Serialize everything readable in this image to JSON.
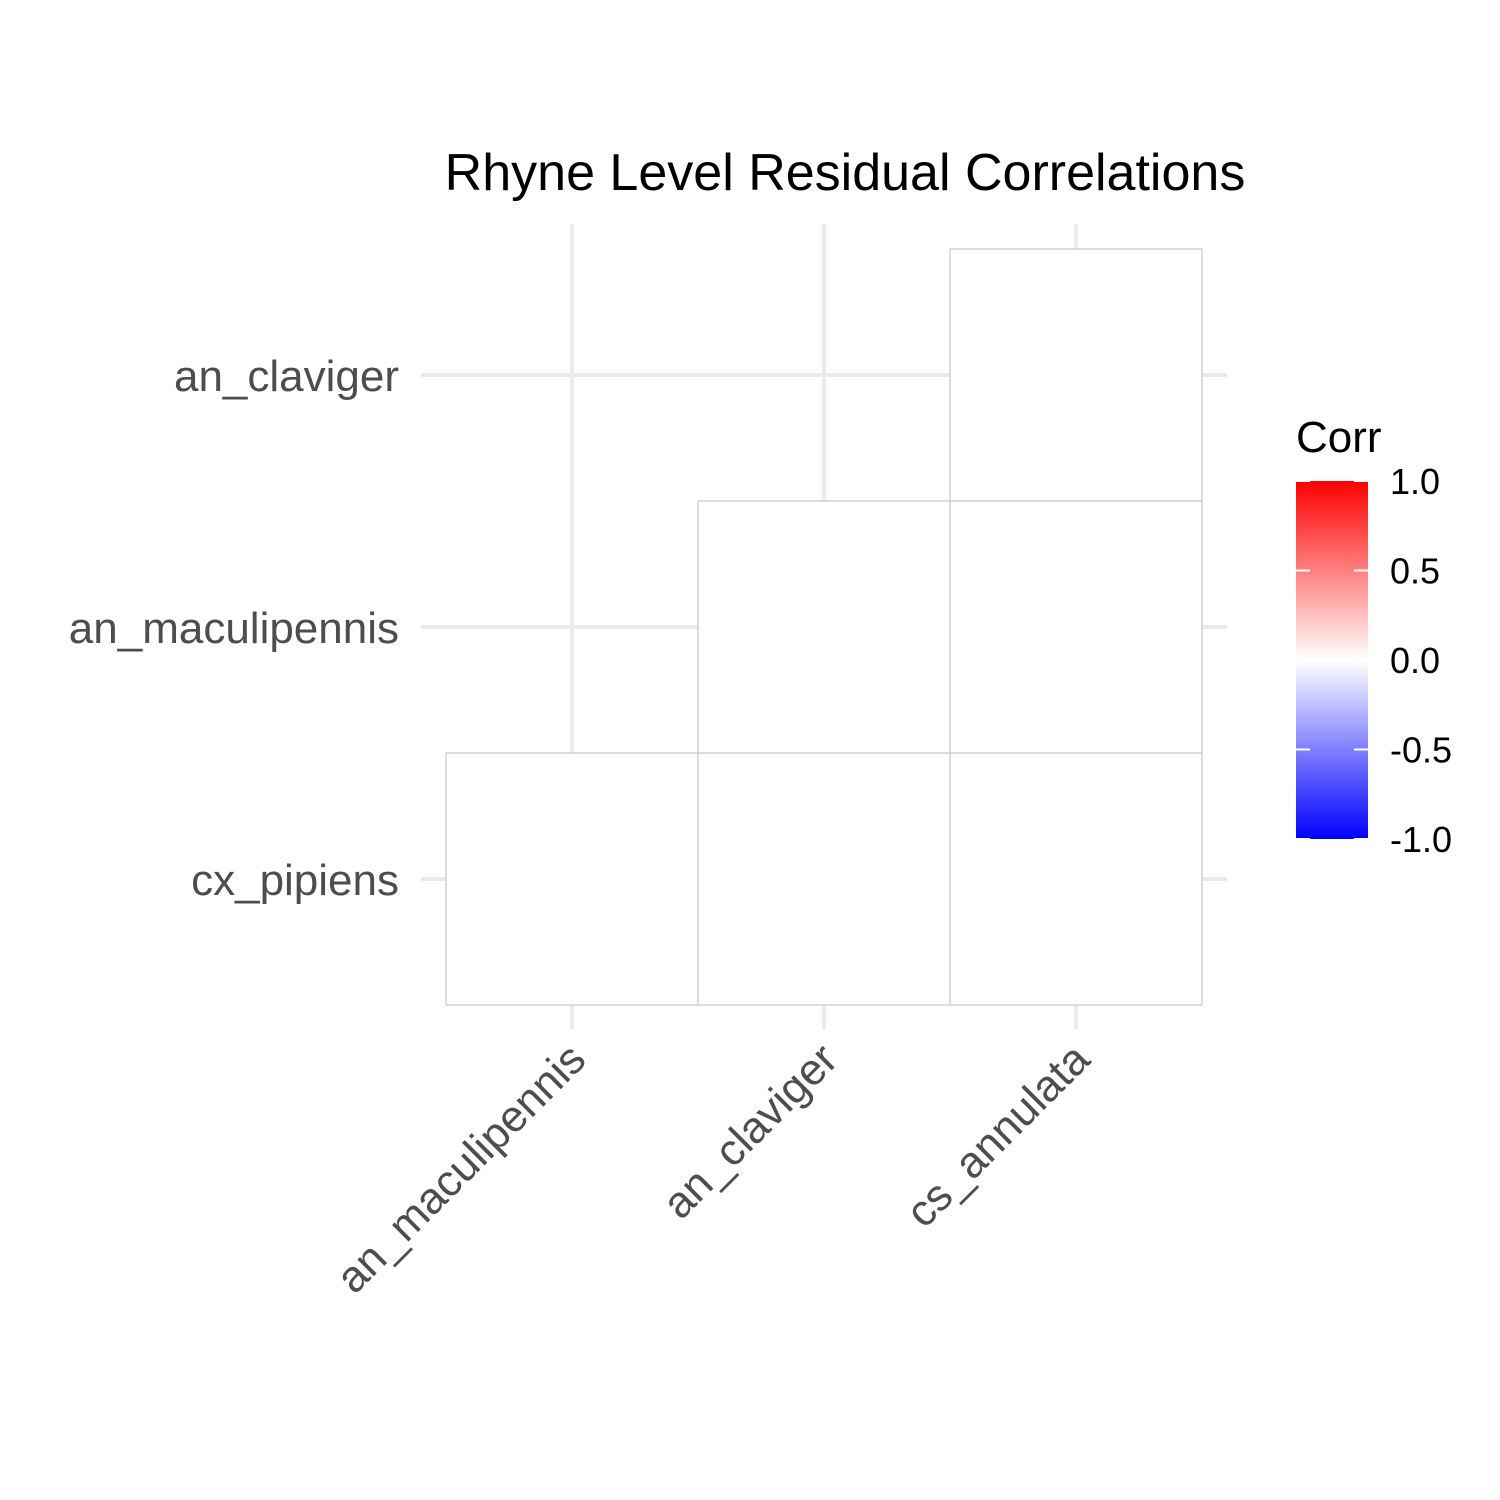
{
  "chart_data": {
    "type": "heatmap",
    "title": "Rhyne Level Residual Correlations",
    "x_categories": [
      "an_maculipennis",
      "an_claviger",
      "cs_annulata"
    ],
    "y_categories": [
      "cx_pipiens",
      "an_maculipennis",
      "an_claviger"
    ],
    "cells": [
      {
        "x": "an_maculipennis",
        "y": "cx_pipiens",
        "value": 0.0
      },
      {
        "x": "an_claviger",
        "y": "cx_pipiens",
        "value": 0.0
      },
      {
        "x": "cs_annulata",
        "y": "cx_pipiens",
        "value": 0.0
      },
      {
        "x": "an_claviger",
        "y": "an_maculipennis",
        "value": 0.0
      },
      {
        "x": "cs_annulata",
        "y": "an_maculipennis",
        "value": 0.0
      },
      {
        "x": "cs_annulata",
        "y": "an_claviger",
        "value": 0.0
      }
    ],
    "legend": {
      "title": "Corr",
      "ticks": [
        "1.0",
        "0.5",
        "0.0",
        "-0.5",
        "-1.0"
      ],
      "tick_values": [
        1.0,
        0.5,
        0.0,
        -0.5,
        -1.0
      ],
      "range": [
        -1.0,
        1.0
      ],
      "low_color": "#0000ff",
      "mid_color": "#ffffff",
      "high_color": "#ff0000",
      "placement": "right"
    },
    "grid": true,
    "xlabel": "",
    "ylabel": ""
  }
}
